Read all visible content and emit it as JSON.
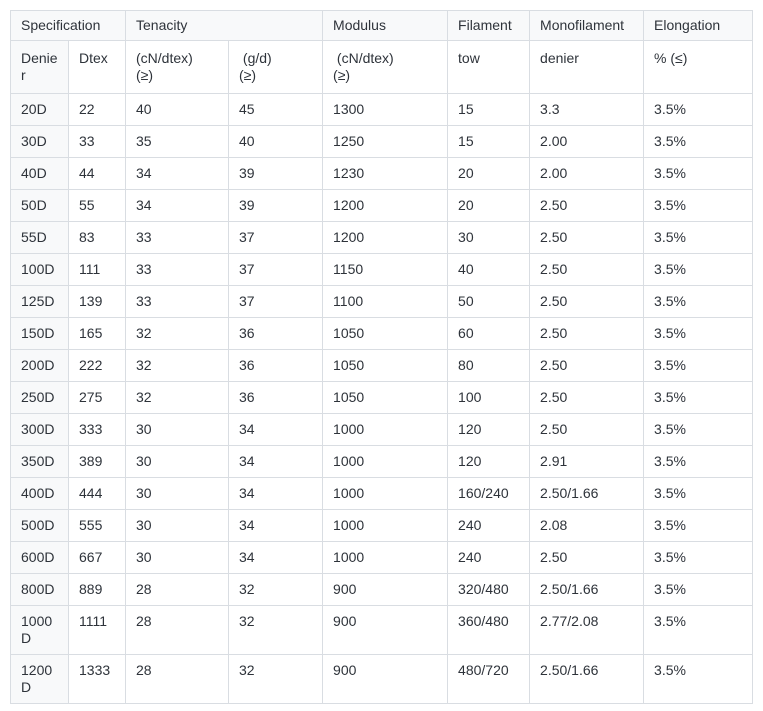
{
  "table": {
    "header_row1": [
      {
        "label": "Specification"
      },
      {
        "label": "Tenacity"
      },
      {
        "label": "Modulus"
      },
      {
        "label": "Filament"
      },
      {
        "label": "Monofilament"
      },
      {
        "label": "Elongation"
      }
    ],
    "header_row2": [
      {
        "line1": "Denier"
      },
      {
        "line1": "Dtex"
      },
      {
        "line1": "(cN/dtex)",
        "line2": "(≥)"
      },
      {
        "line1": " (g/d)",
        "line2": "(≥)"
      },
      {
        "line1": " (cN/dtex)",
        "line2": "(≥)"
      },
      {
        "line1": "tow"
      },
      {
        "line1": "denier"
      },
      {
        "line1": "% (≤)"
      }
    ],
    "colors": {
      "border": "#d9dde2",
      "header_background": "#f8f9fa",
      "first_column_background": "#f8f9fa",
      "text": "#2e333a",
      "cell_background": "#ffffff"
    }
  },
  "chart_data": {
    "type": "table",
    "title": "Yarn specification table",
    "columns": [
      "Specification Denier",
      "Specification Dtex",
      "Tenacity (cN/dtex) (≥)",
      "Tenacity (g/d) (≥)",
      "Modulus (cN/dtex) (≥)",
      "Filament tow",
      "Monofilament denier",
      "Elongation % (≤)"
    ],
    "rows": [
      [
        "20D",
        "22",
        "40",
        "45",
        "1300",
        "15",
        "3.3",
        "3.5%"
      ],
      [
        "30D",
        "33",
        "35",
        "40",
        "1250",
        "15",
        "2.00",
        "3.5%"
      ],
      [
        "40D",
        "44",
        "34",
        "39",
        "1230",
        "20",
        "2.00",
        "3.5%"
      ],
      [
        "50D",
        "55",
        "34",
        "39",
        "1200",
        "20",
        "2.50",
        "3.5%"
      ],
      [
        "55D",
        "83",
        "33",
        "37",
        "1200",
        "30",
        "2.50",
        "3.5%"
      ],
      [
        "100D",
        "111",
        "33",
        "37",
        "1150",
        "40",
        "2.50",
        "3.5%"
      ],
      [
        "125D",
        "139",
        "33",
        "37",
        "1100",
        "50",
        "2.50",
        "3.5%"
      ],
      [
        "150D",
        "165",
        "32",
        "36",
        "1050",
        "60",
        "2.50",
        "3.5%"
      ],
      [
        "200D",
        "222",
        "32",
        "36",
        "1050",
        "80",
        "2.50",
        "3.5%"
      ],
      [
        "250D",
        "275",
        "32",
        "36",
        "1050",
        "100",
        "2.50",
        "3.5%"
      ],
      [
        "300D",
        "333",
        "30",
        "34",
        "1000",
        "120",
        "2.50",
        "3.5%"
      ],
      [
        "350D",
        "389",
        "30",
        "34",
        "1000",
        "120",
        "2.91",
        "3.5%"
      ],
      [
        "400D",
        "444",
        "30",
        "34",
        "1000",
        "160/240",
        "2.50/1.66",
        "3.5%"
      ],
      [
        "500D",
        "555",
        "30",
        "34",
        "1000",
        "240",
        "2.08",
        "3.5%"
      ],
      [
        "600D",
        "667",
        "30",
        "34",
        "1000",
        "240",
        "2.50",
        "3.5%"
      ],
      [
        "800D",
        "889",
        "28",
        "32",
        "900",
        "320/480",
        "2.50/1.66",
        "3.5%"
      ],
      [
        "1000D",
        "1111",
        "28",
        "32",
        "900",
        "360/480",
        "2.77/2.08",
        "3.5%"
      ],
      [
        "1200D",
        "1333",
        "28",
        "32",
        "900",
        "480/720",
        "2.50/1.66",
        "3.5%"
      ]
    ]
  }
}
